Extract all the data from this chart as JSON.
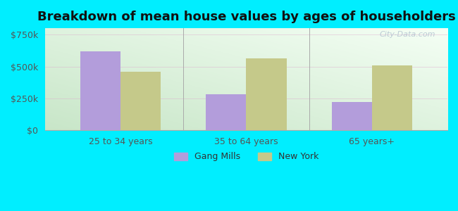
{
  "title": "Breakdown of mean house values by ages of householders",
  "categories": [
    "25 to 34 years",
    "35 to 64 years",
    "65 years+"
  ],
  "gang_mills": [
    620000,
    285000,
    220000
  ],
  "new_york": [
    460000,
    565000,
    510000
  ],
  "bar_color_gang": "#b39ddb",
  "bar_color_ny": "#c5c98a",
  "background_outer": "#00eeff",
  "ylim": [
    0,
    800000
  ],
  "yticks": [
    0,
    250000,
    500000,
    750000
  ],
  "ytick_labels": [
    "$0",
    "$250k",
    "$500k",
    "$750k"
  ],
  "legend_gang": "Gang Mills",
  "legend_ny": "New York",
  "bar_width": 0.32,
  "title_fontsize": 13,
  "tick_fontsize": 9,
  "legend_fontsize": 9,
  "watermark": "City-Data.com"
}
